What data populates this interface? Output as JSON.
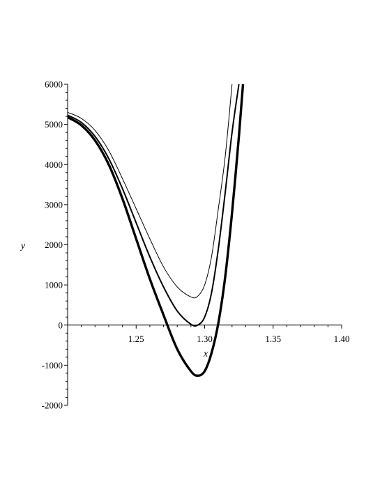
{
  "chart_data": {
    "type": "line",
    "xlabel": "x",
    "ylabel": "y",
    "xlim": [
      1.2,
      1.4
    ],
    "ylim": [
      -2000,
      6000
    ],
    "grid": false,
    "x_ticks": [
      1.25,
      1.3,
      1.35,
      1.4
    ],
    "x_tick_labels": [
      "1.25",
      "1.30",
      "1.35",
      "1.40"
    ],
    "y_ticks": [
      -2000,
      -1000,
      0,
      1000,
      2000,
      3000,
      4000,
      5000,
      6000
    ],
    "y_tick_labels": [
      "-2000",
      "-1000",
      "0",
      "1000",
      "2000",
      "3000",
      "4000",
      "5000",
      "6000"
    ],
    "series": [
      {
        "stroke": "#000000",
        "weight": "thin",
        "x": [
          1.2,
          1.21,
          1.22,
          1.23,
          1.24,
          1.25,
          1.26,
          1.27,
          1.28,
          1.29,
          1.295,
          1.3,
          1.305,
          1.31,
          1.315,
          1.32
        ],
        "y": [
          5300,
          5150,
          4850,
          4350,
          3650,
          2900,
          2150,
          1450,
          950,
          700,
          720,
          1000,
          1700,
          2900,
          4200,
          6000
        ]
      },
      {
        "stroke": "#000000",
        "weight": "medium",
        "x": [
          1.2,
          1.21,
          1.22,
          1.23,
          1.24,
          1.25,
          1.26,
          1.27,
          1.28,
          1.29,
          1.295,
          1.3,
          1.305,
          1.31,
          1.315,
          1.32,
          1.325
        ],
        "y": [
          5230,
          5050,
          4700,
          4150,
          3400,
          2550,
          1700,
          950,
          350,
          20,
          0,
          200,
          800,
          1900,
          3300,
          4800,
          6000
        ]
      },
      {
        "stroke": "#000000",
        "weight": "thick",
        "x": [
          1.2,
          1.21,
          1.22,
          1.23,
          1.24,
          1.25,
          1.26,
          1.27,
          1.28,
          1.29,
          1.295,
          1.3,
          1.305,
          1.31,
          1.315,
          1.32,
          1.325,
          1.328
        ],
        "y": [
          5180,
          4980,
          4600,
          4000,
          3150,
          2150,
          1150,
          250,
          -600,
          -1150,
          -1260,
          -1150,
          -700,
          50,
          1200,
          2800,
          4700,
          6000
        ]
      }
    ]
  }
}
